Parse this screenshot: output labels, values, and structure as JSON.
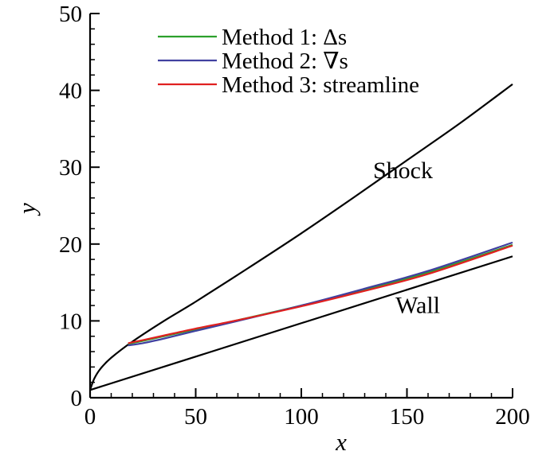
{
  "chart_data": {
    "type": "line",
    "title": "",
    "xlabel": "x",
    "ylabel": "y",
    "xlim": [
      0,
      200
    ],
    "ylim": [
      0,
      50
    ],
    "xticks": [
      0,
      50,
      100,
      150,
      200
    ],
    "yticks": [
      0,
      10,
      20,
      30,
      40,
      50
    ],
    "grid": false,
    "legend_position": "top-center",
    "series": [
      {
        "name": "Method 1: Δs",
        "color": "#2ca02c",
        "x": [
          18,
          25,
          35,
          50,
          70,
          100,
          130,
          160,
          200
        ],
        "y": [
          7.0,
          7.4,
          8.0,
          8.9,
          10.1,
          12.0,
          14.1,
          16.3,
          19.9
        ]
      },
      {
        "name": "Method 2: ∇s",
        "color": "#4040a0",
        "x": [
          18,
          25,
          35,
          50,
          70,
          100,
          130,
          160,
          200
        ],
        "y": [
          6.8,
          7.1,
          7.7,
          8.7,
          10.0,
          12.0,
          14.2,
          16.5,
          20.2
        ]
      },
      {
        "name": "Method 3: streamline",
        "color": "#e02020",
        "x": [
          18,
          25,
          35,
          50,
          70,
          100,
          130,
          160,
          200
        ],
        "y": [
          7.1,
          7.5,
          8.1,
          9.0,
          10.1,
          11.9,
          13.9,
          16.1,
          19.8
        ]
      }
    ],
    "reference_lines": [
      {
        "name": "Shock",
        "color": "#000000",
        "x": [
          0,
          2,
          5,
          10,
          20,
          35,
          50,
          75,
          100,
          125,
          150,
          175,
          200
        ],
        "y": [
          1.0,
          2.5,
          3.8,
          5.2,
          7.3,
          10.0,
          12.5,
          16.9,
          21.4,
          26.1,
          30.9,
          35.7,
          40.8
        ]
      },
      {
        "name": "Wall",
        "color": "#000000",
        "x": [
          0,
          200
        ],
        "y": [
          1.0,
          18.4
        ]
      }
    ],
    "annotations": [
      {
        "text": "Shock",
        "x": 150,
        "y": 30
      },
      {
        "text": "Wall",
        "x": 157,
        "y": 12.5
      }
    ]
  }
}
